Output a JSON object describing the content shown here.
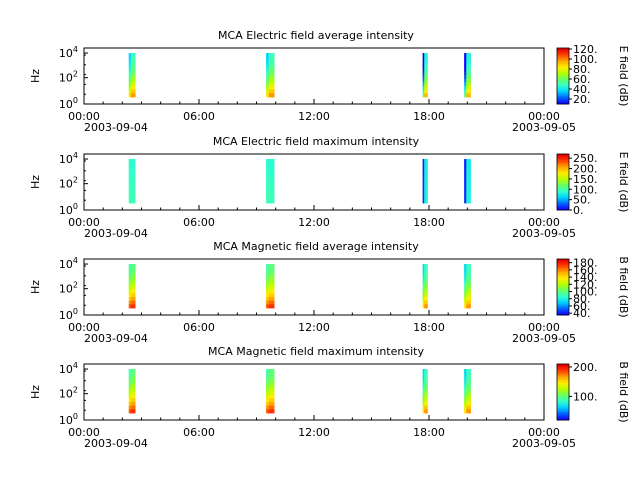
{
  "figure": {
    "date_start": "2003-09-04",
    "date_end": "2003-09-05",
    "colormap": [
      "#1400ff",
      "#0064ff",
      "#00d2ff",
      "#33ffcc",
      "#66ff66",
      "#b4ff00",
      "#ffee00",
      "#ffaa00",
      "#ff4400",
      "#e60000"
    ]
  },
  "chart_data": [
    {
      "type": "heatmap",
      "title": "MCA  Electric field average intensity",
      "ylabel": "Hz",
      "ytick_labels": [
        "10^0",
        "10^2",
        "10^4"
      ],
      "xlim": [
        "2003-09-04 00:00",
        "2003-09-05 00:00"
      ],
      "xtick_labels": [
        "00:00",
        "06:00",
        "12:00",
        "18:00",
        "00:00"
      ],
      "colorbar": {
        "label": "E field (dB)",
        "range": [
          10,
          122
        ],
        "tick_values": [
          20,
          40,
          60,
          80,
          100,
          120
        ],
        "tick_labels": [
          "20.",
          "40.",
          "60.",
          "80.",
          "100.",
          "120."
        ]
      },
      "segments": [
        {
          "start": "02:20",
          "end": "02:40",
          "level": "medium"
        },
        {
          "start": "09:30",
          "end": "09:55",
          "level": "medium"
        },
        {
          "start": "17:40",
          "end": "17:55",
          "level": "low"
        },
        {
          "start": "19:50",
          "end": "20:10",
          "level": "low"
        }
      ]
    },
    {
      "type": "heatmap",
      "title": "MCA  Electric field maximum intensity",
      "ylabel": "Hz",
      "ytick_labels": [
        "10^0",
        "10^2",
        "10^4"
      ],
      "xlim": [
        "2003-09-04 00:00",
        "2003-09-05 00:00"
      ],
      "xtick_labels": [
        "00:00",
        "06:00",
        "12:00",
        "18:00",
        "00:00"
      ],
      "colorbar": {
        "label": "E field (dB)",
        "range": [
          0,
          270
        ],
        "tick_values": [
          0,
          50,
          100,
          150,
          200,
          250
        ],
        "tick_labels": [
          "0.",
          "50.",
          "100.",
          "150.",
          "200.",
          "250."
        ]
      },
      "segments": [
        {
          "start": "02:20",
          "end": "02:40",
          "level": "flat"
        },
        {
          "start": "09:30",
          "end": "09:55",
          "level": "flat"
        },
        {
          "start": "17:40",
          "end": "17:55",
          "level": "flat-low"
        },
        {
          "start": "19:50",
          "end": "20:10",
          "level": "flat-low"
        }
      ]
    },
    {
      "type": "heatmap",
      "title": "MCA  Magnetic field average intensity",
      "ylabel": "Hz",
      "ytick_labels": [
        "10^0",
        "10^2",
        "10^4"
      ],
      "xlim": [
        "2003-09-04 00:00",
        "2003-09-05 00:00"
      ],
      "xtick_labels": [
        "00:00",
        "06:00",
        "12:00",
        "18:00",
        "00:00"
      ],
      "colorbar": {
        "label": "B field (dB)",
        "range": [
          35,
          190
        ],
        "tick_values": [
          40,
          60,
          80,
          100,
          120,
          140,
          160,
          180
        ],
        "tick_labels": [
          "40.",
          "60.",
          "80.",
          "100.",
          "120.",
          "140.",
          "160.",
          "180."
        ]
      },
      "segments": [
        {
          "start": "02:20",
          "end": "02:40",
          "level": "high"
        },
        {
          "start": "09:30",
          "end": "09:55",
          "level": "high"
        },
        {
          "start": "17:40",
          "end": "17:55",
          "level": "medium"
        },
        {
          "start": "19:50",
          "end": "20:10",
          "level": "medium"
        }
      ]
    },
    {
      "type": "heatmap",
      "title": "MCA  Magnetic field maximum intensity",
      "ylabel": "Hz",
      "ytick_labels": [
        "10^0",
        "10^2",
        "10^4"
      ],
      "xlim": [
        "2003-09-04 00:00",
        "2003-09-05 00:00"
      ],
      "xtick_labels": [
        "00:00",
        "06:00",
        "12:00",
        "18:00",
        "00:00"
      ],
      "colorbar": {
        "label": "B field (dB)",
        "range": [
          20,
          210
        ],
        "tick_values": [
          100,
          200
        ],
        "tick_labels": [
          "100.",
          "200."
        ]
      },
      "segments": [
        {
          "start": "02:20",
          "end": "02:40",
          "level": "high"
        },
        {
          "start": "09:30",
          "end": "09:55",
          "level": "high"
        },
        {
          "start": "17:40",
          "end": "17:55",
          "level": "medium"
        },
        {
          "start": "19:50",
          "end": "20:10",
          "level": "medium"
        }
      ]
    }
  ]
}
